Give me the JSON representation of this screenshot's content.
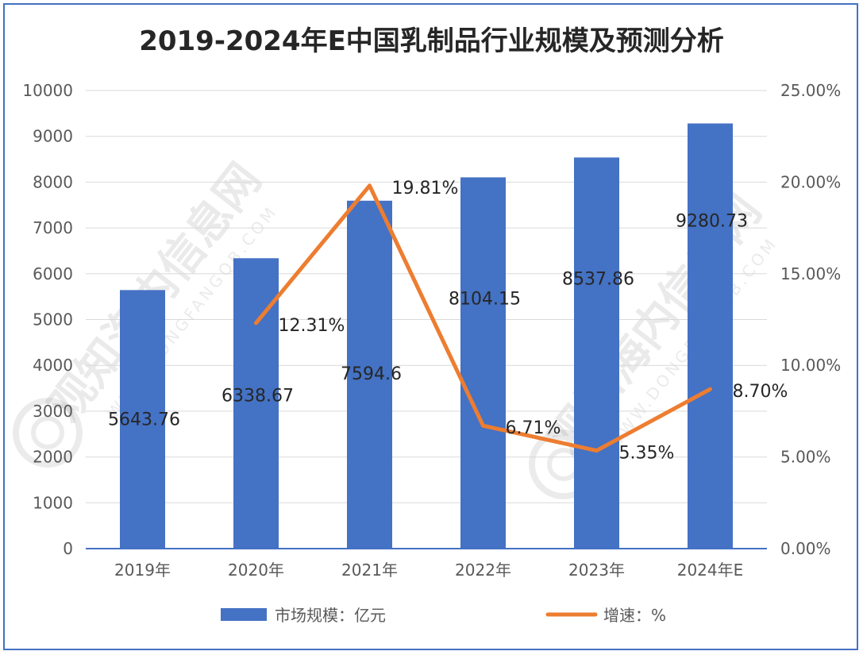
{
  "chart_data": {
    "type": "bar",
    "title": "2019-2024年E中国乳制品行业规模及预测分析",
    "categories": [
      "2019年",
      "2020年",
      "2021年",
      "2022年",
      "2023年",
      "2024年E"
    ],
    "series": [
      {
        "name": "市场规模：亿元",
        "type": "bar",
        "axis": "left",
        "color": "#4472c4",
        "values": [
          5643.76,
          6338.67,
          7594.6,
          8104.15,
          8537.86,
          9280.73
        ],
        "labels": [
          "5643.76",
          "6338.67",
          "7594.6",
          "8104.15",
          "8537.86",
          "9280.73"
        ]
      },
      {
        "name": "增速：%",
        "type": "line",
        "axis": "right",
        "color": "#ed7d31",
        "values": [
          null,
          12.31,
          19.81,
          6.71,
          5.35,
          8.7
        ],
        "labels": [
          null,
          "12.31%",
          "19.81%",
          "6.71%",
          "5.35%",
          "8.70%"
        ]
      }
    ],
    "left_axis": {
      "ylim": [
        0,
        10000
      ],
      "ticks": [
        "0",
        "1000",
        "2000",
        "3000",
        "4000",
        "5000",
        "6000",
        "7000",
        "8000",
        "9000",
        "10000"
      ]
    },
    "right_axis": {
      "ylim": [
        0,
        25
      ],
      "ticks": [
        "0.00%",
        "5.00%",
        "10.00%",
        "15.00%",
        "20.00%",
        "25.00%"
      ]
    },
    "grid": true,
    "legend_position": "bottom"
  },
  "watermark": {
    "text": "观知海内信息网",
    "url": "WWW.DONGFANGQB.COM"
  }
}
